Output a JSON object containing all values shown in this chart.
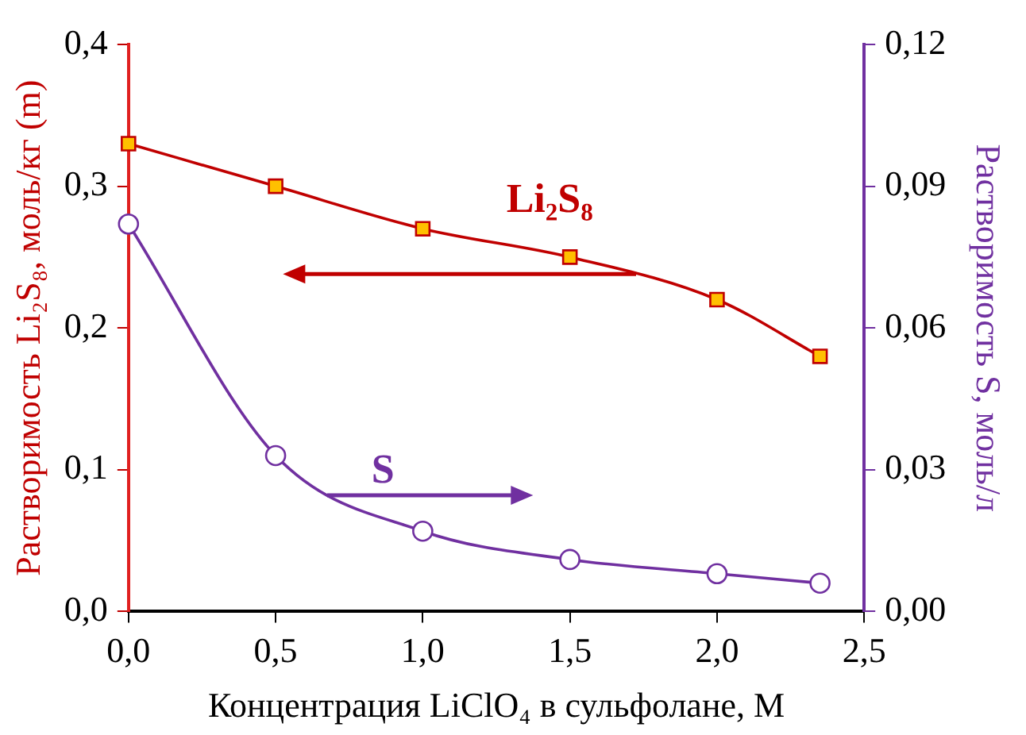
{
  "chart_data": {
    "type": "line",
    "xlabel": "Концентрация LiClO₄ в сульфолане, М",
    "ylabel": "Растворимость Li₂S₈, моль/кг (m)",
    "y2label": "Растворимость S, моль/л",
    "x": [
      0,
      0.5,
      1,
      1.5,
      2,
      2.35
    ],
    "series": [
      {
        "name": "Li₂S₈",
        "color": "#c00000",
        "marker": "square",
        "values": [
          0.33,
          0.3,
          0.27,
          0.25,
          0.22,
          0.18
        ]
      },
      {
        "name": "S",
        "color": "#7030a0",
        "marker": "circle",
        "axis": "y2",
        "values": [
          0.082,
          0.033,
          0.017,
          0.011,
          0.008,
          0.006
        ]
      }
    ],
    "xlim": [
      0,
      2.5
    ],
    "xticks": [
      {
        "value": 0,
        "label": "0,0"
      },
      {
        "value": 0.5,
        "label": "0,5"
      },
      {
        "value": 1,
        "label": "1,0"
      },
      {
        "value": 1.5,
        "label": "1,5"
      },
      {
        "value": 2,
        "label": "2,0"
      },
      {
        "value": 2.5,
        "label": "2,5"
      }
    ],
    "ylim": [
      0,
      0.4
    ],
    "yticks": [
      {
        "value": 0,
        "label": "0,0"
      },
      {
        "value": 0.1,
        "label": "0,1"
      },
      {
        "value": 0.2,
        "label": "0,2"
      },
      {
        "value": 0.3,
        "label": "0,3"
      },
      {
        "value": 0.4,
        "label": "0,4"
      }
    ],
    "y2lim": [
      0,
      0.12
    ],
    "y2ticks": [
      {
        "value": 0,
        "label": "0,00"
      },
      {
        "value": 0.03,
        "label": "0,03"
      },
      {
        "value": 0.06,
        "label": "0,06"
      },
      {
        "value": 0.09,
        "label": "0,09"
      },
      {
        "value": 0.12,
        "label": "0,12"
      }
    ],
    "grid": false,
    "legend": false
  }
}
